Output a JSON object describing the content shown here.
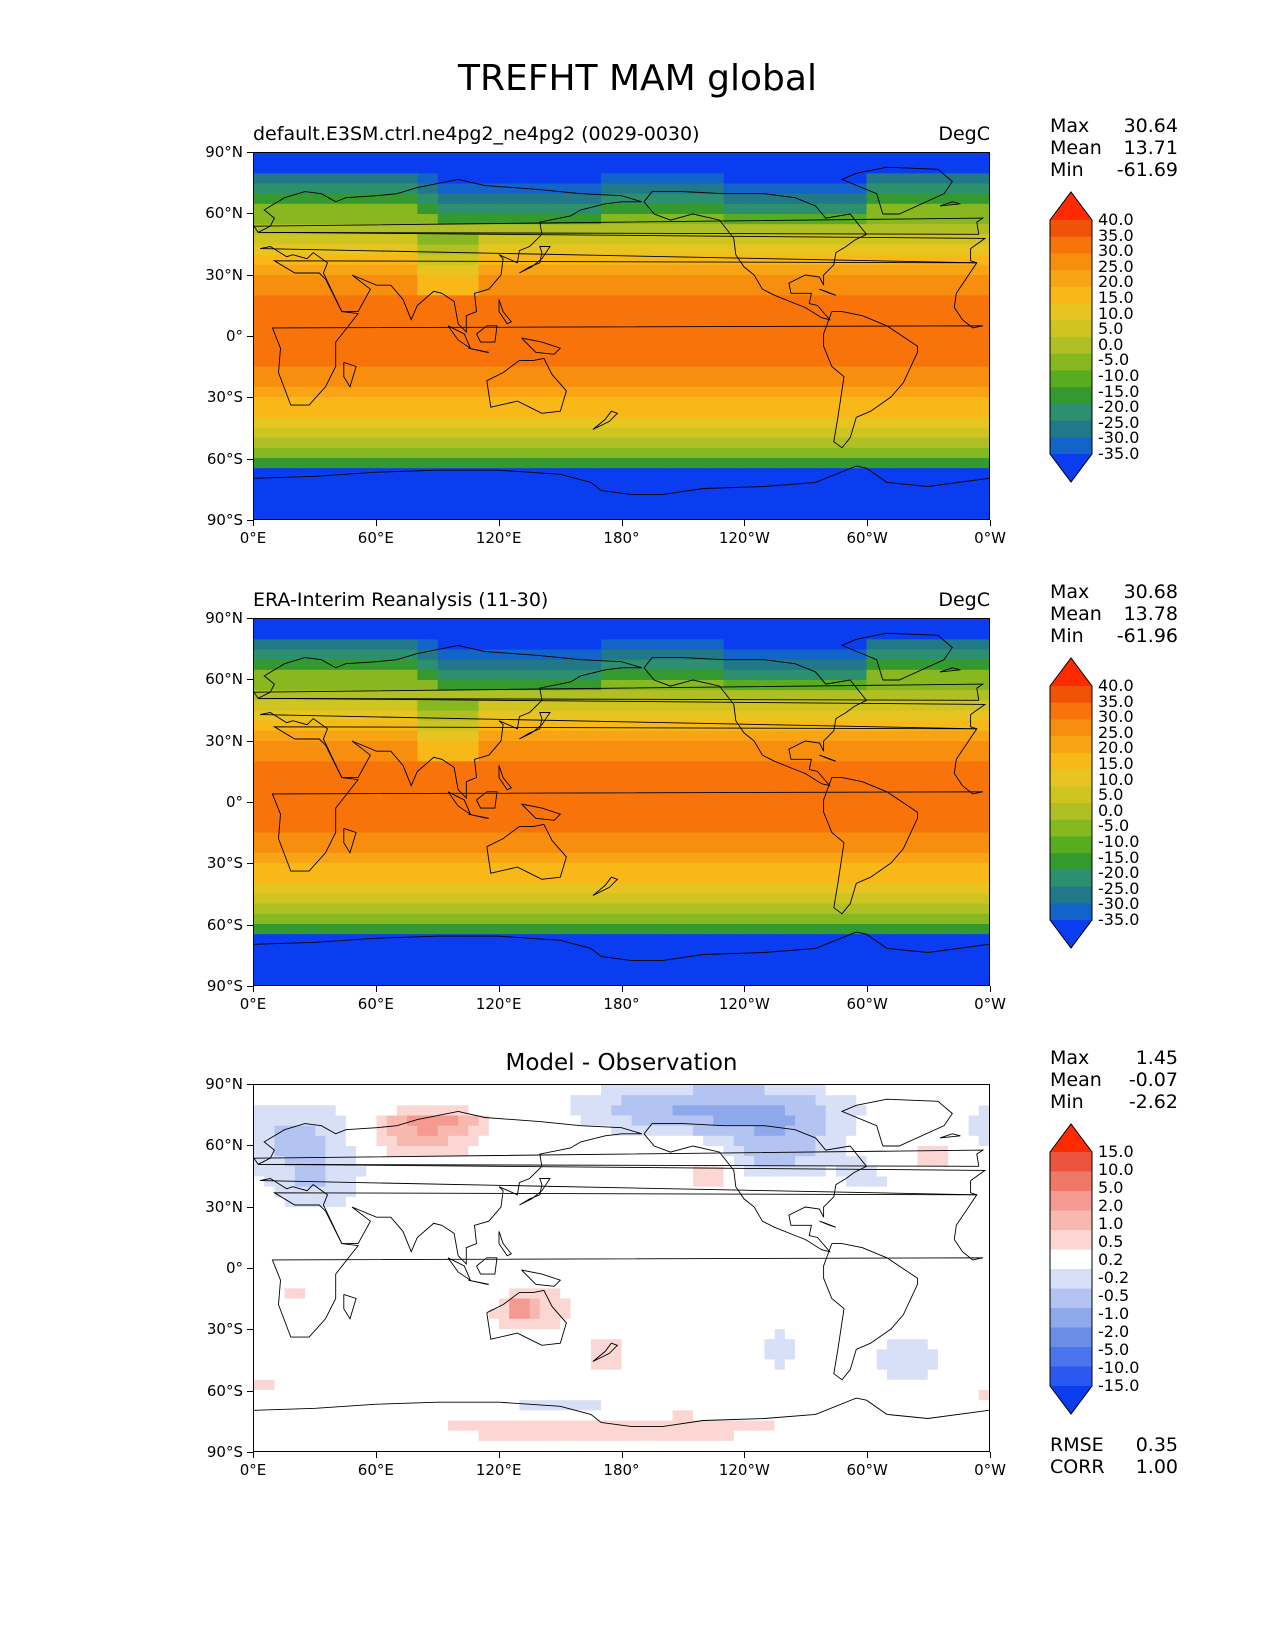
{
  "title": "TREFHT MAM global",
  "panels": [
    {
      "id": "model",
      "left_title": "default.E3SM.ctrl.ne4pg2_ne4pg2 (0029-0030)",
      "right_title": "DegC",
      "center_title": "",
      "stats": [
        {
          "label": "Max",
          "value": "30.64"
        },
        {
          "label": "Mean",
          "value": "13.71"
        },
        {
          "label": "Min",
          "value": "-61.69"
        }
      ],
      "extra_stats": [],
      "colorbar": {
        "labels": [
          "40.0",
          "35.0",
          "30.0",
          "25.0",
          "20.0",
          "15.0",
          "10.0",
          "5.0",
          "0.0",
          "-5.0",
          "-10.0",
          "-15.0",
          "-20.0",
          "-25.0",
          "-30.0",
          "-35.0"
        ],
        "colors": [
          "#0a3cf0",
          "#1264c8",
          "#207888",
          "#2c9070",
          "#349a30",
          "#58ac20",
          "#88b820",
          "#b0c024",
          "#d0c420",
          "#e8c420",
          "#f7b818",
          "#f8a414",
          "#f88e0e",
          "#f8740a",
          "#f05208",
          "#ff2a00"
        ]
      },
      "lat_ticks": [
        "90°N",
        "60°N",
        "30°N",
        "0°",
        "30°S",
        "60°S",
        "90°S"
      ],
      "lon_ticks": [
        "0°E",
        "60°E",
        "120°E",
        "180°",
        "120°W",
        "60°W",
        "0°W"
      ]
    },
    {
      "id": "obs",
      "left_title": "ERA-Interim Reanalysis (11-30)",
      "right_title": "DegC",
      "center_title": "",
      "stats": [
        {
          "label": "Max",
          "value": "30.68"
        },
        {
          "label": "Mean",
          "value": "13.78"
        },
        {
          "label": "Min",
          "value": "-61.96"
        }
      ],
      "extra_stats": [],
      "colorbar": {
        "labels": [
          "40.0",
          "35.0",
          "30.0",
          "25.0",
          "20.0",
          "15.0",
          "10.0",
          "5.0",
          "0.0",
          "-5.0",
          "-10.0",
          "-15.0",
          "-20.0",
          "-25.0",
          "-30.0",
          "-35.0"
        ],
        "colors": [
          "#0a3cf0",
          "#1264c8",
          "#207888",
          "#2c9070",
          "#349a30",
          "#58ac20",
          "#88b820",
          "#b0c024",
          "#d0c420",
          "#e8c420",
          "#f7b818",
          "#f8a414",
          "#f88e0e",
          "#f8740a",
          "#f05208",
          "#ff2a00"
        ]
      },
      "lat_ticks": [
        "90°N",
        "60°N",
        "30°N",
        "0°",
        "30°S",
        "60°S",
        "90°S"
      ],
      "lon_ticks": [
        "0°E",
        "60°E",
        "120°E",
        "180°",
        "120°W",
        "60°W",
        "0°W"
      ]
    },
    {
      "id": "diff",
      "left_title": "",
      "right_title": "",
      "center_title": "Model - Observation",
      "stats": [
        {
          "label": "Max",
          "value": "1.45"
        },
        {
          "label": "Mean",
          "value": "-0.07"
        },
        {
          "label": "Min",
          "value": "-2.62"
        }
      ],
      "extra_stats": [
        {
          "label": "RMSE",
          "value": "0.35"
        },
        {
          "label": "CORR",
          "value": "1.00"
        }
      ],
      "colorbar": {
        "labels": [
          "15.0",
          "10.0",
          "5.0",
          "2.0",
          "1.0",
          "0.5",
          "0.2",
          "-0.2",
          "-0.5",
          "-1.0",
          "-2.0",
          "-5.0",
          "-10.0",
          "-15.0"
        ],
        "colors": [
          "#0a3cf0",
          "#2a58f0",
          "#4a74ec",
          "#6a8ee8",
          "#8ea8ec",
          "#b4c4f2",
          "#d8e0f8",
          "#ffffff",
          "#fbd6d2",
          "#f8b8b0",
          "#f49a90",
          "#f07866",
          "#ec5440",
          "#ff2a00"
        ]
      },
      "lat_ticks": [
        "90°N",
        "60°N",
        "30°N",
        "0°",
        "30°S",
        "60°S",
        "90°S"
      ],
      "lon_ticks": [
        "0°E",
        "60°E",
        "120°E",
        "180°",
        "120°W",
        "60°W",
        "0°W"
      ]
    }
  ]
}
